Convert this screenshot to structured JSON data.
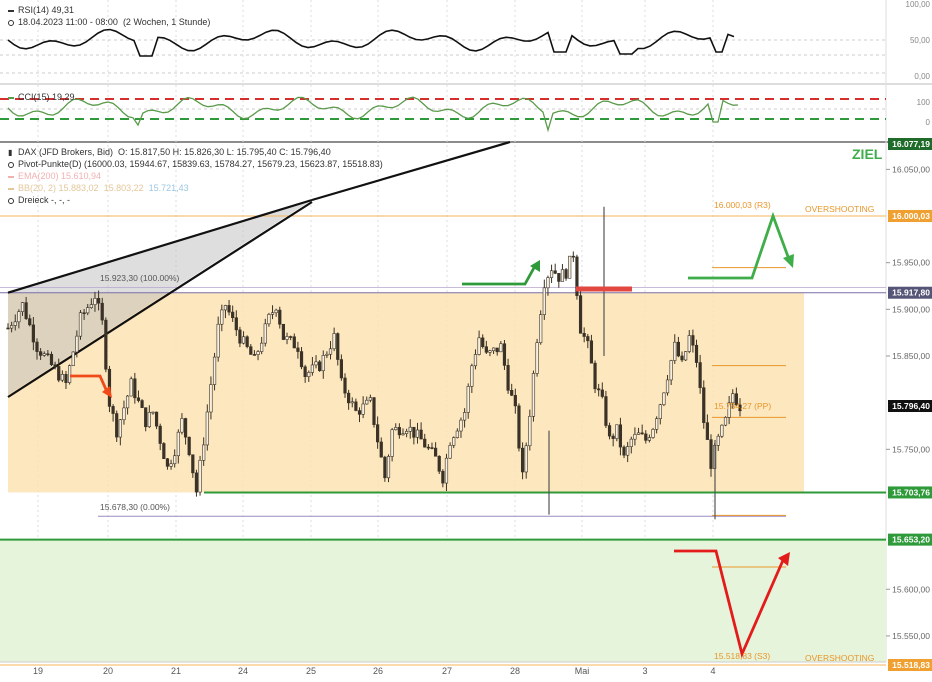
{
  "panels": {
    "rsi": {
      "name": "RSI(14)",
      "value": "49,31",
      "subtitle": "18.04.2023 11:00 - 08:00",
      "period": "(2 Wochen, 1 Stunde)",
      "ticks": [
        "100,00",
        "50,00",
        "0,00"
      ]
    },
    "cci": {
      "name": "CCI(15)",
      "value": "19,29",
      "ticks": [
        "100",
        "0"
      ]
    },
    "main": {
      "legend": {
        "instrument": "DAX (JFD Brokers, Bid)",
        "ohlc": "O: 15.817,50  H: 15.826,30  L: 15.795,40  C: 15.796,40",
        "pivot": "Pivot-Punkte(D)  (16000.03,  15944.67,  15839.63,  15784.27,  15679.23,  15623.87,  15518.83)",
        "ema": "EMA(200)  15.610,94",
        "bb": "BB(20, 2)  15.883,02",
        "bb_mid": "15.803,22",
        "bb_low": "15.721,43",
        "dreieck": "Dreieck  -, -, -"
      },
      "ziel": "ZIEL",
      "fib_high": "15.923,30 (100.00%)",
      "fib_low": "15.678,30 (0.00%)",
      "r3_label": "16.000,03 (R3)",
      "pp_label": "15.784,27 (PP)",
      "s3_label": "15.518,83 (S3)",
      "overshooting_top": "OVERSHOOTING",
      "overshooting_bottom": "OVERSHOOTING"
    },
    "x_ticks": [
      "19",
      "20",
      "21",
      "24",
      "25",
      "26",
      "27",
      "28",
      "Mai",
      "3",
      "4"
    ],
    "price_ticks": [
      "16.050,00",
      "15.950,00",
      "15.900,00",
      "15.850,00",
      "15.750,00",
      "15.600,00",
      "15.550,00"
    ],
    "price_badges": [
      {
        "label": "16.077,19",
        "value": 16077.19,
        "color": "#1f6b2a"
      },
      {
        "label": "16.000,03",
        "value": 16000.03,
        "color": "#f0a030"
      },
      {
        "label": "15.917,80",
        "value": 15917.8,
        "color": "#555577"
      },
      {
        "label": "15.796,40",
        "value": 15796.4,
        "color": "#111111"
      },
      {
        "label": "15.703,76",
        "value": 15703.76,
        "color": "#2e9a3a"
      },
      {
        "label": "15.653,20",
        "value": 15653.2,
        "color": "#2e9a3a"
      },
      {
        "label": "15.518,83",
        "value": 15518.83,
        "color": "#f0a030"
      }
    ]
  },
  "chart_data": {
    "type": "candlestick",
    "title": "DAX (JFD Brokers, Bid)",
    "timeframe": "1 hour",
    "x_ticks": [
      "19",
      "20",
      "21",
      "24",
      "25",
      "26",
      "27",
      "28",
      "Mai",
      "3",
      "4"
    ],
    "ylim": [
      15510,
      16080
    ],
    "levels": {
      "r3": 16000.03,
      "pp": 15784.27,
      "s3": 15518.83,
      "range_top": 15917.8,
      "range_bottom": 15703.76,
      "fib_100": 15923.3,
      "fib_0": 15678.3,
      "support_zone_top": 15653.2,
      "last_close": 15796.4
    },
    "close_path": [
      [
        0,
        15880
      ],
      [
        2,
        15905
      ],
      [
        4,
        15860
      ],
      [
        6,
        15840
      ],
      [
        8,
        15820
      ],
      [
        10,
        15890
      ],
      [
        12,
        15915
      ],
      [
        13,
        15885
      ],
      [
        14,
        15800
      ],
      [
        15,
        15770
      ],
      [
        17,
        15820
      ],
      [
        19,
        15780
      ],
      [
        20,
        15790
      ],
      [
        21,
        15760
      ],
      [
        22,
        15730
      ],
      [
        23,
        15750
      ],
      [
        24,
        15780
      ],
      [
        25,
        15750
      ],
      [
        26,
        15705
      ],
      [
        27,
        15760
      ],
      [
        29,
        15880
      ],
      [
        30,
        15905
      ],
      [
        32,
        15870
      ],
      [
        34,
        15845
      ],
      [
        36,
        15890
      ],
      [
        37,
        15905
      ],
      [
        38,
        15870
      ],
      [
        40,
        15860
      ],
      [
        41,
        15830
      ],
      [
        43,
        15840
      ],
      [
        45,
        15870
      ],
      [
        46,
        15820
      ],
      [
        48,
        15790
      ],
      [
        50,
        15800
      ],
      [
        51,
        15760
      ],
      [
        52,
        15720
      ],
      [
        53,
        15770
      ],
      [
        55,
        15775
      ],
      [
        57,
        15760
      ],
      [
        59,
        15740
      ],
      [
        60,
        15720
      ],
      [
        61,
        15760
      ],
      [
        63,
        15790
      ],
      [
        64,
        15840
      ],
      [
        65,
        15870
      ],
      [
        66,
        15850
      ],
      [
        68,
        15860
      ],
      [
        69,
        15820
      ],
      [
        70,
        15790
      ],
      [
        71,
        15720
      ],
      [
        72,
        15790
      ],
      [
        73,
        15870
      ],
      [
        74,
        15930
      ],
      [
        75,
        15945
      ],
      [
        76,
        15935
      ],
      [
        77,
        15940
      ],
      [
        78,
        15960
      ],
      [
        79,
        15880
      ],
      [
        80,
        15860
      ],
      [
        81,
        15820
      ],
      [
        82,
        15800
      ],
      [
        83,
        15760
      ],
      [
        84,
        15770
      ],
      [
        85,
        15740
      ],
      [
        86,
        15760
      ],
      [
        87,
        15765
      ],
      [
        88,
        15760
      ],
      [
        89,
        15775
      ],
      [
        90,
        15800
      ],
      [
        91,
        15830
      ],
      [
        92,
        15860
      ],
      [
        93,
        15840
      ],
      [
        94,
        15870
      ],
      [
        95,
        15845
      ],
      [
        96,
        15780
      ],
      [
        97,
        15735
      ],
      [
        98,
        15760
      ],
      [
        99,
        15780
      ],
      [
        100,
        15810
      ],
      [
        101,
        15796.4
      ]
    ]
  }
}
